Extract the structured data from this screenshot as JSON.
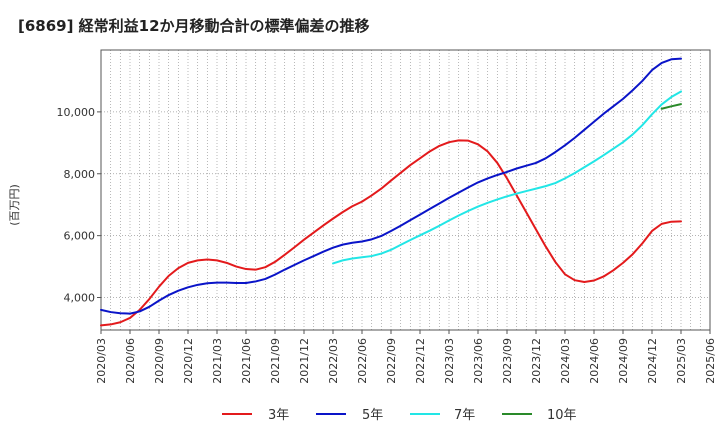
{
  "chart_data": {
    "type": "line",
    "title": "[6869]  経常利益12か月移動合計の標準偏差の推移",
    "ylabel": "(百万円)",
    "xlabel": "",
    "ylim": [
      2950,
      12000
    ],
    "yticks": [
      4000,
      6000,
      8000,
      10000
    ],
    "ytick_labels": [
      "4,000",
      "6,000",
      "8,000",
      "10,000"
    ],
    "xticks": [
      "2020/03",
      "2020/06",
      "2020/09",
      "2020/12",
      "2021/03",
      "2021/06",
      "2021/09",
      "2021/12",
      "2022/03",
      "2022/06",
      "2022/09",
      "2022/12",
      "2023/03",
      "2023/06",
      "2023/09",
      "2023/12",
      "2024/03",
      "2024/06",
      "2024/09",
      "2024/12",
      "2025/03",
      "2025/06"
    ],
    "grid": true,
    "legend_position": "bottom",
    "series": [
      {
        "name": "3年",
        "color": "#e31a1c",
        "x": [
          "2020/03",
          "2020/04",
          "2020/05",
          "2020/06",
          "2020/07",
          "2020/08",
          "2020/09",
          "2020/10",
          "2020/11",
          "2020/12",
          "2021/01",
          "2021/02",
          "2021/03",
          "2021/04",
          "2021/05",
          "2021/06",
          "2021/07",
          "2021/08",
          "2021/09",
          "2021/10",
          "2021/11",
          "2021/12",
          "2022/01",
          "2022/02",
          "2022/03",
          "2022/04",
          "2022/05",
          "2022/06",
          "2022/07",
          "2022/08",
          "2022/09",
          "2022/10",
          "2022/11",
          "2022/12",
          "2023/01",
          "2023/02",
          "2023/03",
          "2023/04",
          "2023/05",
          "2023/06",
          "2023/07",
          "2023/08",
          "2023/09",
          "2023/10",
          "2023/11",
          "2023/12",
          "2024/01",
          "2024/02",
          "2024/03",
          "2024/04",
          "2024/05",
          "2024/06",
          "2024/07",
          "2024/08",
          "2024/09",
          "2024/10",
          "2024/11",
          "2024/12",
          "2025/01",
          "2025/02",
          "2025/03"
        ],
        "values": [
          3100,
          3130,
          3200,
          3340,
          3600,
          3950,
          4350,
          4700,
          4950,
          5120,
          5200,
          5230,
          5200,
          5120,
          5000,
          4920,
          4900,
          4980,
          5150,
          5380,
          5620,
          5870,
          6100,
          6330,
          6550,
          6760,
          6950,
          7100,
          7300,
          7520,
          7780,
          8030,
          8280,
          8500,
          8720,
          8900,
          9020,
          9080,
          9070,
          8950,
          8720,
          8350,
          7850,
          7300,
          6750,
          6200,
          5650,
          5150,
          4750,
          4560,
          4500,
          4550,
          4680,
          4880,
          5120,
          5400,
          5750,
          6150,
          6380,
          6450,
          6460
        ]
      },
      {
        "name": "5年",
        "color": "#0a14c8",
        "x": [
          "2020/03",
          "2020/04",
          "2020/05",
          "2020/06",
          "2020/07",
          "2020/08",
          "2020/09",
          "2020/10",
          "2020/11",
          "2020/12",
          "2021/01",
          "2021/02",
          "2021/03",
          "2021/04",
          "2021/05",
          "2021/06",
          "2021/07",
          "2021/08",
          "2021/09",
          "2021/10",
          "2021/11",
          "2021/12",
          "2022/01",
          "2022/02",
          "2022/03",
          "2022/04",
          "2022/05",
          "2022/06",
          "2022/07",
          "2022/08",
          "2022/09",
          "2022/10",
          "2022/11",
          "2022/12",
          "2023/01",
          "2023/02",
          "2023/03",
          "2023/04",
          "2023/05",
          "2023/06",
          "2023/07",
          "2023/08",
          "2023/09",
          "2023/10",
          "2023/11",
          "2023/12",
          "2024/01",
          "2024/02",
          "2024/03",
          "2024/04",
          "2024/05",
          "2024/06",
          "2024/07",
          "2024/08",
          "2024/09",
          "2024/10",
          "2024/11",
          "2024/12",
          "2025/01",
          "2025/02",
          "2025/03"
        ],
        "values": [
          3600,
          3530,
          3490,
          3480,
          3550,
          3700,
          3900,
          4080,
          4220,
          4330,
          4410,
          4460,
          4480,
          4480,
          4470,
          4470,
          4520,
          4600,
          4740,
          4900,
          5050,
          5200,
          5340,
          5480,
          5610,
          5710,
          5770,
          5810,
          5880,
          5990,
          6150,
          6320,
          6500,
          6680,
          6860,
          7040,
          7220,
          7390,
          7560,
          7720,
          7850,
          7960,
          8060,
          8170,
          8260,
          8350,
          8500,
          8700,
          8920,
          9160,
          9420,
          9680,
          9940,
          10180,
          10420,
          10700,
          11000,
          11350,
          11580,
          11700,
          11720
        ]
      },
      {
        "name": "7年",
        "color": "#22e6e6",
        "x": [
          "2022/03",
          "2022/04",
          "2022/05",
          "2022/06",
          "2022/07",
          "2022/08",
          "2022/09",
          "2022/10",
          "2022/11",
          "2022/12",
          "2023/01",
          "2023/02",
          "2023/03",
          "2023/04",
          "2023/05",
          "2023/06",
          "2023/07",
          "2023/08",
          "2023/09",
          "2023/10",
          "2023/11",
          "2023/12",
          "2024/01",
          "2024/02",
          "2024/03",
          "2024/04",
          "2024/05",
          "2024/06",
          "2024/07",
          "2024/08",
          "2024/09",
          "2024/10",
          "2024/11",
          "2024/12",
          "2025/01",
          "2025/02",
          "2025/03"
        ],
        "values": [
          5100,
          5200,
          5260,
          5300,
          5340,
          5420,
          5540,
          5700,
          5860,
          6010,
          6160,
          6320,
          6490,
          6650,
          6800,
          6940,
          7060,
          7170,
          7270,
          7360,
          7440,
          7520,
          7600,
          7700,
          7850,
          8020,
          8210,
          8400,
          8600,
          8810,
          9020,
          9270,
          9570,
          9920,
          10240,
          10480,
          10660
        ]
      },
      {
        "name": "10年",
        "color": "#2a8a2a",
        "x": [
          "2025/01",
          "2025/02",
          "2025/03"
        ],
        "values": [
          10100,
          10180,
          10250
        ]
      }
    ]
  }
}
